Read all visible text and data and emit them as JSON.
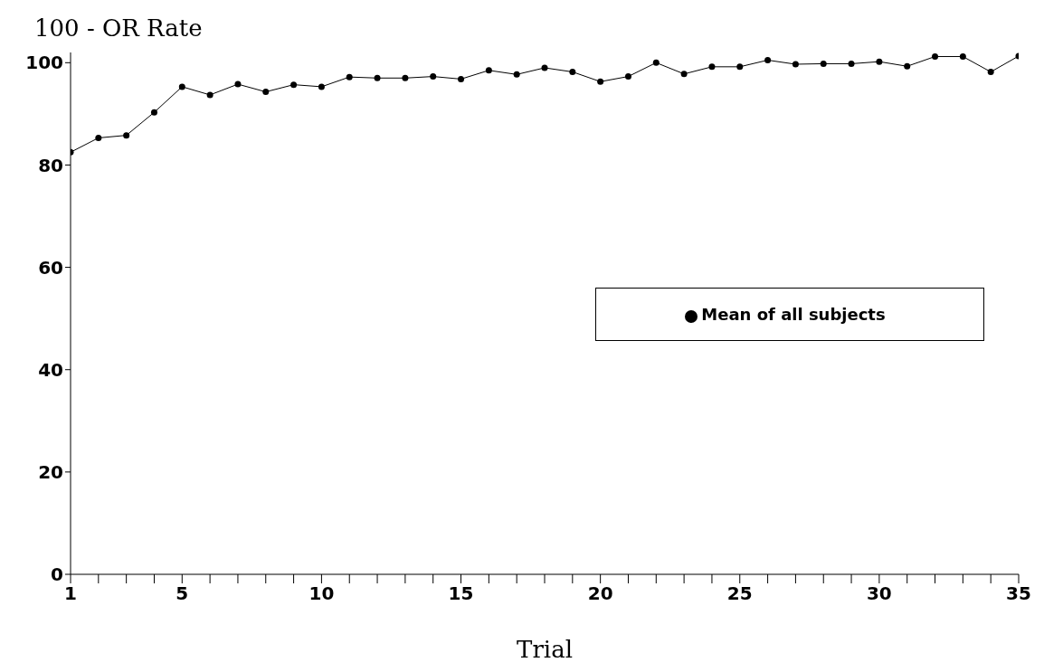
{
  "chart_data": {
    "type": "line",
    "ylabel": "100 - OR Rate",
    "xlabel": "Trial",
    "x": [
      1,
      2,
      3,
      4,
      5,
      6,
      7,
      8,
      9,
      10,
      11,
      12,
      13,
      14,
      15,
      16,
      17,
      18,
      19,
      20,
      21,
      22,
      23,
      24,
      25,
      26,
      27,
      28,
      29,
      30,
      31,
      32,
      33,
      34,
      35
    ],
    "series": [
      {
        "name": "Mean of all subjects",
        "color": "#000000",
        "values": [
          82.5,
          85.3,
          85.8,
          90.3,
          95.3,
          93.7,
          95.8,
          94.3,
          95.7,
          95.3,
          97.2,
          97,
          97,
          97.3,
          96.8,
          98.5,
          97.7,
          99,
          98.2,
          96.3,
          97.3,
          100,
          97.8,
          99.2,
          99.2,
          100.5,
          99.7,
          99.8,
          99.8,
          100.2,
          99.3,
          101.2,
          101.2,
          98.2,
          101.3
        ]
      }
    ],
    "xlim": [
      1,
      35
    ],
    "xticks": [
      1,
      {
        "value": 2,
        "label": null
      },
      {
        "value": 3,
        "label": null
      },
      {
        "value": 4,
        "label": null
      },
      5,
      {
        "value": 6,
        "label": null
      },
      {
        "value": 7,
        "label": null
      },
      {
        "value": 8,
        "label": null
      },
      {
        "value": 9,
        "label": null
      },
      10,
      {
        "value": 11,
        "label": null
      },
      {
        "value": 12,
        "label": null
      },
      {
        "value": 13,
        "label": null
      },
      {
        "value": 14,
        "label": null
      },
      15,
      {
        "value": 16,
        "label": null
      },
      {
        "value": 17,
        "label": null
      },
      {
        "value": 18,
        "label": null
      },
      {
        "value": 19,
        "label": null
      },
      20,
      {
        "value": 21,
        "label": null
      },
      {
        "value": 22,
        "label": null
      },
      {
        "value": 23,
        "label": null
      },
      {
        "value": 24,
        "label": null
      },
      25,
      {
        "value": 26,
        "label": null
      },
      {
        "value": 27,
        "label": null
      },
      {
        "value": 28,
        "label": null
      },
      {
        "value": 29,
        "label": null
      },
      30,
      {
        "value": 31,
        "label": null
      },
      {
        "value": 32,
        "label": null
      },
      {
        "value": 33,
        "label": null
      },
      {
        "value": 34,
        "label": null
      },
      35
    ],
    "ylim": [
      0,
      102
    ],
    "yticks": [
      0,
      20,
      40,
      60,
      80,
      100
    ],
    "grid": false,
    "legend": "right",
    "marker": "circle",
    "line_style": "solid"
  }
}
